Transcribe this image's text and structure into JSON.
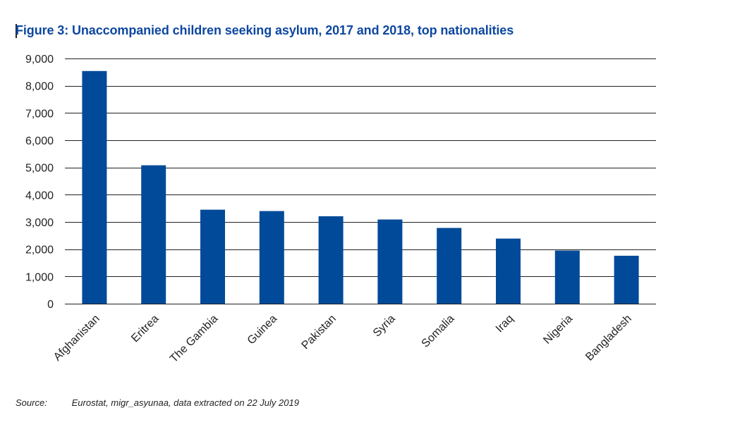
{
  "figure": {
    "title": "Figure 3: Unaccompanied children seeking asylum, 2017 and 2018, top nationalities"
  },
  "source": {
    "label": "Source:",
    "text": "Eurostat, migr_asyunaa, data extracted on 22 July 2019"
  },
  "colors": {
    "bar": "#004a99",
    "title": "#0d47a1",
    "gridline": "#222222"
  },
  "chart_data": {
    "type": "bar",
    "title": "Figure 3: Unaccompanied children seeking asylum, 2017 and 2018, top nationalities",
    "xlabel": "",
    "ylabel": "",
    "categories": [
      "Afghanistan",
      "Eritrea",
      "The Gambia",
      "Guinea",
      "Pakistan",
      "Syria",
      "Somalia",
      "Iraq",
      "Nigeria",
      "Bangladesh"
    ],
    "values": [
      8540,
      5080,
      3450,
      3400,
      3210,
      3090,
      2780,
      2390,
      1950,
      1760
    ],
    "ylim": [
      0,
      9000
    ],
    "yticks": [
      0,
      1000,
      2000,
      3000,
      4000,
      5000,
      6000,
      7000,
      8000,
      9000
    ],
    "ytick_labels": [
      "0",
      "1,000",
      "2,000",
      "3,000",
      "4,000",
      "5,000",
      "6,000",
      "7,000",
      "8,000",
      "9,000"
    ],
    "grid": true,
    "legend": "none"
  }
}
